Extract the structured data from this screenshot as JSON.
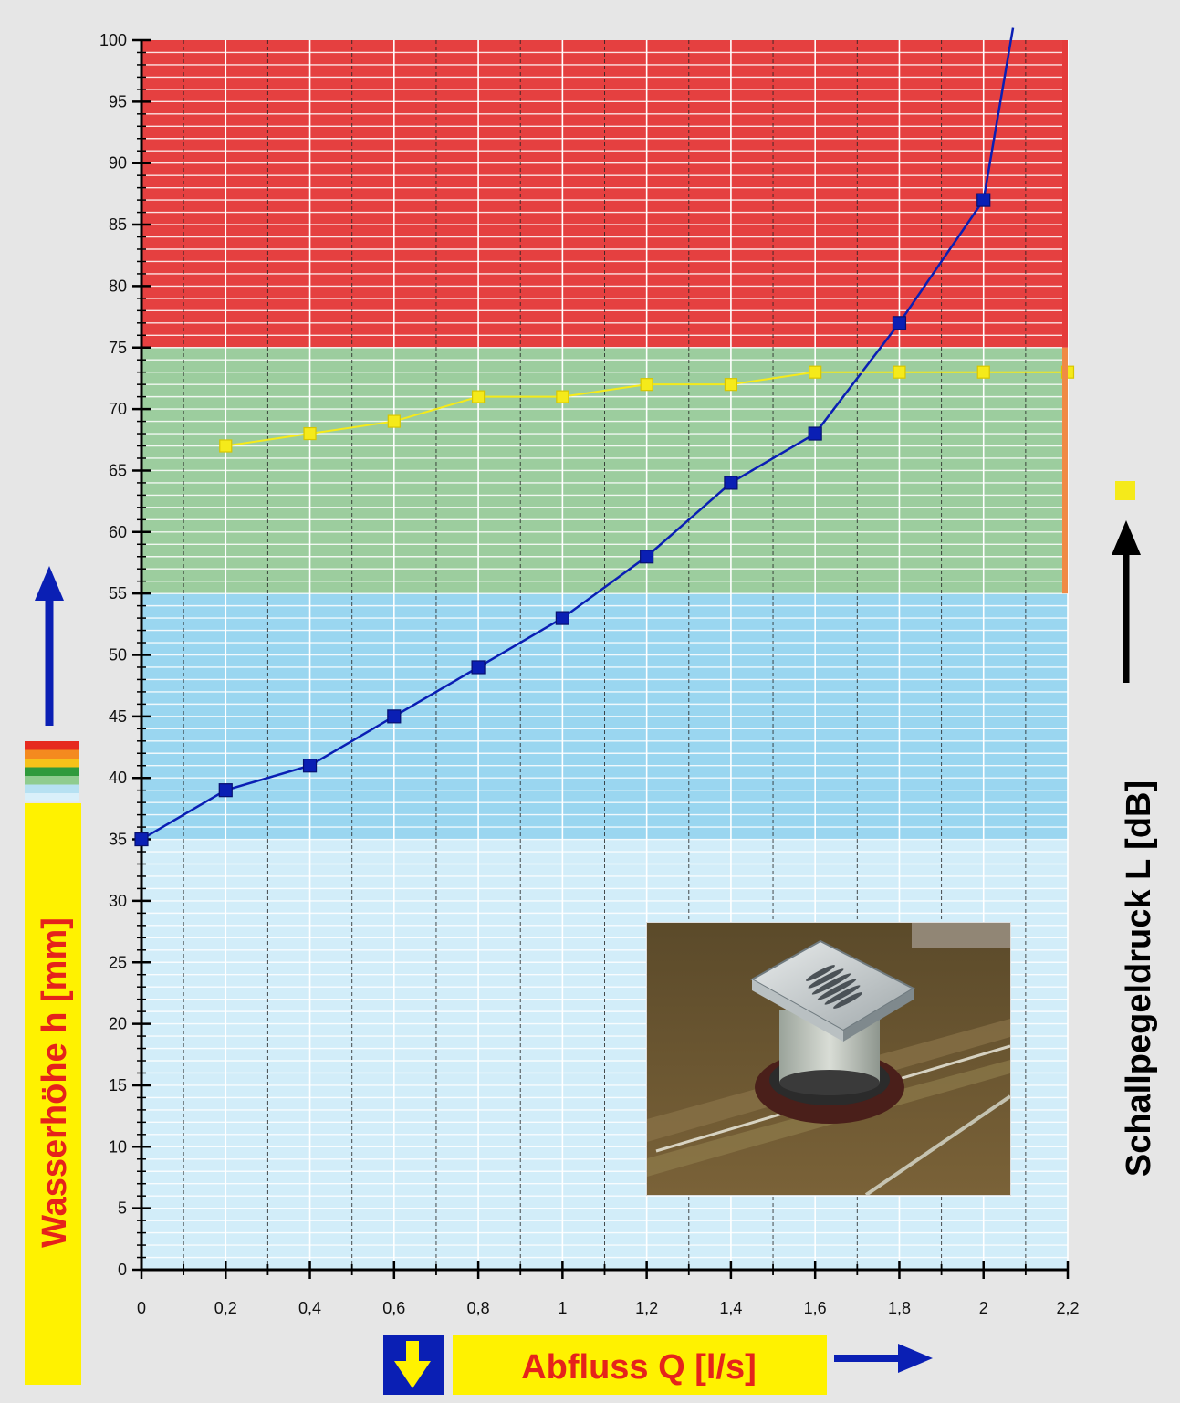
{
  "chart_data": {
    "type": "line",
    "title": "",
    "xlabel": "Abfluss Q [l/s]",
    "ylabel": "Wasserhöhe h [mm]",
    "y2label": "Schallpegeldruck L [dB]",
    "xlim": [
      0,
      2.2
    ],
    "ylim": [
      0,
      100
    ],
    "x_ticks": [
      "0",
      "0,2",
      "0,4",
      "0,6",
      "0,8",
      "1",
      "1,2",
      "1,4",
      "1,6",
      "1,8",
      "2",
      "2,2"
    ],
    "y_ticks": [
      "0",
      "5",
      "10",
      "15",
      "20",
      "25",
      "30",
      "35",
      "40",
      "45",
      "50",
      "55",
      "60",
      "65",
      "70",
      "75",
      "80",
      "85",
      "90",
      "95",
      "100"
    ],
    "grid": true,
    "bands": [
      {
        "from": 0,
        "to": 35,
        "color": "#d2edf9"
      },
      {
        "from": 35,
        "to": 55,
        "color": "#9ad6f0"
      },
      {
        "from": 55,
        "to": 75,
        "color": "#9ccd9e"
      },
      {
        "from": 75,
        "to": 100,
        "color": "#e54040"
      }
    ],
    "series": [
      {
        "color": "#0a1fb4",
        "marker": "square",
        "x": [
          0,
          0.2,
          0.4,
          0.6,
          0.8,
          1.0,
          1.2,
          1.4,
          1.6,
          1.8,
          2.0,
          2.07
        ],
        "y": [
          35,
          39,
          41,
          45,
          49,
          53,
          58,
          64,
          68,
          77,
          87,
          101
        ],
        "marker_count": 11
      },
      {
        "color": "#f5ea1a",
        "marker": "square",
        "x": [
          0.2,
          0.4,
          0.6,
          0.8,
          1.0,
          1.2,
          1.4,
          1.6,
          1.8,
          2.0,
          2.2
        ],
        "y": [
          67,
          68,
          69,
          71,
          71,
          72,
          72,
          73,
          73,
          73,
          73
        ]
      }
    ]
  },
  "legend": {
    "level_colors": [
      "#e62a1f",
      "#f48a1f",
      "#f6c21a",
      "#2f9a3c",
      "#8fcc8f",
      "#b6e1f2",
      "#d9f0fa"
    ],
    "sound_marker_color": "#f5ea1a",
    "water_arrow_color": "#0a1fb4",
    "flow_arrow_color": "#0a1fb4",
    "sound_arrow_color": "#000000",
    "label_highlight_color": "#fff200"
  },
  "photo": {
    "icon": "floor-drain-photo"
  }
}
